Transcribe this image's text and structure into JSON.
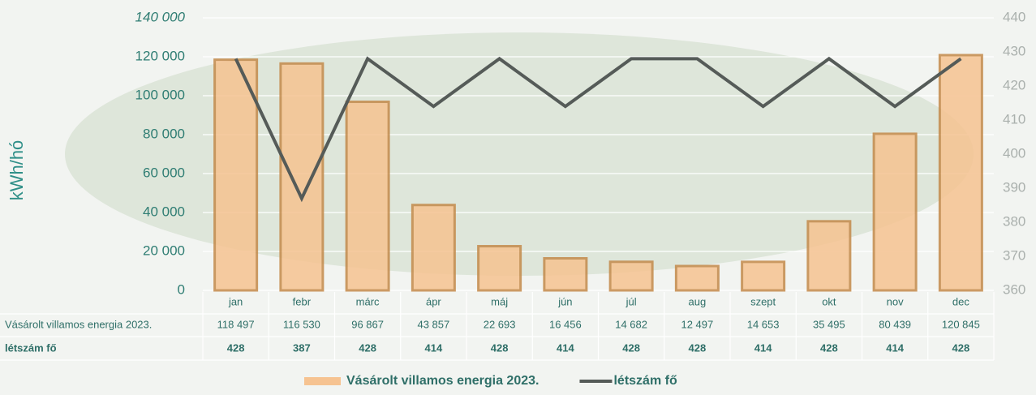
{
  "chart_data": {
    "type": "bar",
    "y_label": "kWh/hó",
    "categories": [
      "jan",
      "febr",
      "márc",
      "ápr",
      "máj",
      "jún",
      "júl",
      "aug",
      "szept",
      "okt",
      "nov",
      "dec"
    ],
    "series": [
      {
        "name": "Vásárolt villamos energia 2023.",
        "color": "#f6c391",
        "values": [
          118497,
          116530,
          96867,
          43857,
          22693,
          16456,
          14682,
          12497,
          14653,
          35495,
          80439,
          120845
        ],
        "value_labels": [
          "118 497",
          "116 530",
          "96 867",
          "43 857",
          "22 693",
          "16 456",
          "14 682",
          "12 497",
          "14 653",
          "35 495",
          "80 439",
          "120 845"
        ]
      },
      {
        "name": "létszám fő",
        "color": "#555b58",
        "axis": "y2",
        "values": [
          428,
          387,
          428,
          414,
          428,
          414,
          428,
          428,
          414,
          428,
          414,
          428
        ]
      }
    ],
    "ylim": [
      0,
      140000
    ],
    "yticks": [
      0,
      {
        "value": 20000,
        "label": "20 000"
      },
      {
        "value": 40000,
        "label": "40 000"
      },
      {
        "value": 60000,
        "label": "60 000"
      },
      {
        "value": 80000,
        "label": "80 000"
      },
      {
        "value": 100000,
        "label": "100 000"
      },
      {
        "value": 120000,
        "label": "120 000"
      },
      {
        "value": 140000,
        "label": "140 000"
      }
    ],
    "y2lim": [
      360,
      440
    ],
    "y2ticks": [
      360,
      370,
      380,
      390,
      400,
      410,
      420,
      430,
      440
    ],
    "grid": true,
    "legend": "bottom"
  }
}
